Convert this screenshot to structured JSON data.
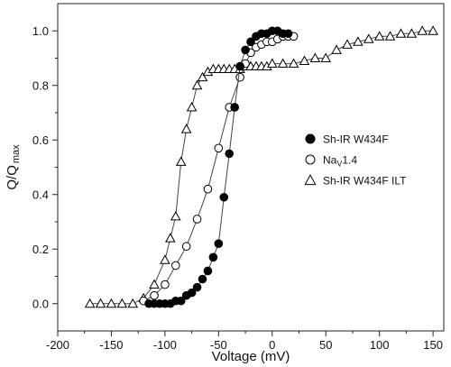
{
  "chart_data": {
    "type": "scatter",
    "xlabel": "Voltage (mV)",
    "ylabel": "Q/Q",
    "ylabel_sub": "max",
    "xlim": [
      -200,
      160
    ],
    "ylim": [
      -0.1,
      1.1
    ],
    "x_ticks": [
      -200,
      -150,
      -100,
      -50,
      0,
      50,
      100,
      150
    ],
    "y_ticks": [
      0.0,
      0.2,
      0.4,
      0.6,
      0.8,
      1.0
    ],
    "grid": false,
    "legend_placement": "right",
    "series": [
      {
        "name": "Sh-IR W434F",
        "marker": "filled-circle",
        "color": "#000000",
        "x": [
          -115,
          -110,
          -105,
          -100,
          -95,
          -90,
          -85,
          -80,
          -75,
          -70,
          -65,
          -60,
          -55,
          -50,
          -45,
          -40,
          -35,
          -30,
          -25,
          -20,
          -15,
          -10,
          -5,
          0,
          5,
          10,
          15
        ],
        "y": [
          0.0,
          0.0,
          0.0,
          0.0,
          0.0,
          0.01,
          0.01,
          0.03,
          0.04,
          0.06,
          0.09,
          0.12,
          0.17,
          0.22,
          0.39,
          0.55,
          0.72,
          0.87,
          0.93,
          0.96,
          0.98,
          0.99,
          0.99,
          1.0,
          1.0,
          0.99,
          0.99
        ]
      },
      {
        "name": "Nav1.4",
        "name_main": "Na",
        "name_sub": "V",
        "name_rest": "1.4",
        "marker": "open-circle",
        "color": "#000000",
        "x": [
          -120,
          -110,
          -100,
          -90,
          -80,
          -70,
          -60,
          -50,
          -40,
          -30,
          -25,
          -20,
          -15,
          -10,
          -5,
          0,
          5,
          10,
          15,
          20
        ],
        "y": [
          0.01,
          0.03,
          0.07,
          0.14,
          0.21,
          0.31,
          0.42,
          0.57,
          0.72,
          0.83,
          0.88,
          0.92,
          0.94,
          0.95,
          0.96,
          0.96,
          0.97,
          0.98,
          0.98,
          0.98
        ]
      },
      {
        "name": "Sh-IR W434F ILT",
        "marker": "open-triangle",
        "color": "#000000",
        "x": [
          -170,
          -160,
          -150,
          -140,
          -130,
          -120,
          -110,
          -100,
          -95,
          -90,
          -85,
          -80,
          -75,
          -70,
          -65,
          -60,
          -55,
          -50,
          -45,
          -40,
          -35,
          -30,
          -25,
          -20,
          -15,
          -10,
          -5,
          0,
          10,
          20,
          30,
          40,
          50,
          60,
          70,
          80,
          90,
          100,
          110,
          120,
          130,
          140,
          150
        ],
        "y": [
          0.0,
          0.0,
          0.0,
          0.0,
          0.0,
          0.02,
          0.07,
          0.16,
          0.24,
          0.32,
          0.52,
          0.64,
          0.72,
          0.8,
          0.83,
          0.85,
          0.86,
          0.86,
          0.86,
          0.86,
          0.86,
          0.86,
          0.87,
          0.87,
          0.87,
          0.87,
          0.87,
          0.88,
          0.88,
          0.88,
          0.89,
          0.9,
          0.9,
          0.93,
          0.95,
          0.96,
          0.97,
          0.98,
          0.98,
          0.99,
          0.99,
          1.0,
          1.0
        ]
      }
    ]
  }
}
